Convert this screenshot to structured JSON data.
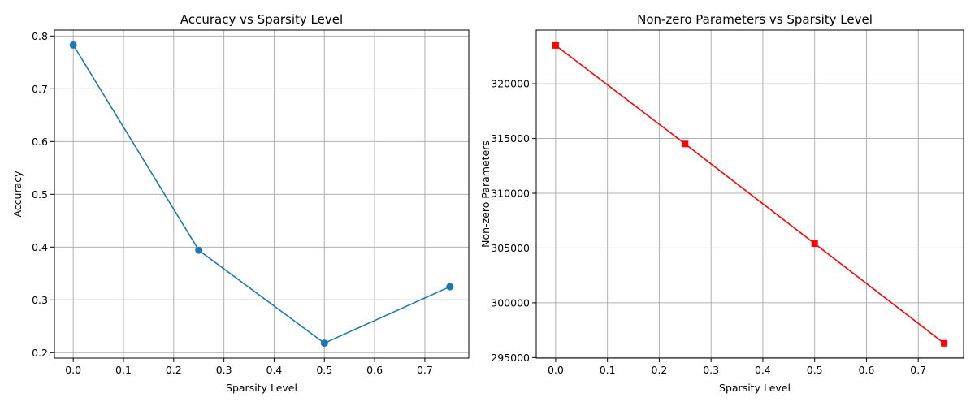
{
  "chart_data": [
    {
      "type": "line",
      "title": "Accuracy vs Sparsity Level",
      "xlabel": "Sparsity Level",
      "ylabel": "Accuracy",
      "x": [
        0.0,
        0.25,
        0.5,
        0.75
      ],
      "series": [
        {
          "values": [
            0.783,
            0.394,
            0.218,
            0.325
          ],
          "color": "#1f77b4",
          "marker": "circle"
        }
      ],
      "xlim": [
        -0.0375,
        0.7875
      ],
      "ylim": [
        0.1897,
        0.8113
      ],
      "xticks": [
        0.0,
        0.1,
        0.2,
        0.3,
        0.4,
        0.5,
        0.6,
        0.7
      ],
      "xtick_labels": [
        "0.0",
        "0.1",
        "0.2",
        "0.3",
        "0.4",
        "0.5",
        "0.6",
        "0.7"
      ],
      "yticks": [
        0.2,
        0.3,
        0.4,
        0.5,
        0.6,
        0.7,
        0.8
      ],
      "ytick_labels": [
        "0.2",
        "0.3",
        "0.4",
        "0.5",
        "0.6",
        "0.7",
        "0.8"
      ],
      "grid": true
    },
    {
      "type": "line",
      "title": "Non-zero Parameters vs Sparsity Level",
      "xlabel": "Sparsity Level",
      "ylabel": "Non-zero Parameters",
      "x": [
        0.0,
        0.25,
        0.5,
        0.75
      ],
      "series": [
        {
          "values": [
            323500,
            314500,
            305400,
            296300
          ],
          "color": "#ff0000",
          "marker": "square"
        }
      ],
      "xlim": [
        -0.0375,
        0.7875
      ],
      "ylim": [
        294950,
        324900
      ],
      "xticks": [
        0.0,
        0.1,
        0.2,
        0.3,
        0.4,
        0.5,
        0.6,
        0.7
      ],
      "xtick_labels": [
        "0.0",
        "0.1",
        "0.2",
        "0.3",
        "0.4",
        "0.5",
        "0.6",
        "0.7"
      ],
      "yticks": [
        295000,
        300000,
        305000,
        310000,
        315000,
        320000
      ],
      "ytick_labels": [
        "295000",
        "300000",
        "305000",
        "310000",
        "315000",
        "320000"
      ],
      "grid": true
    }
  ]
}
